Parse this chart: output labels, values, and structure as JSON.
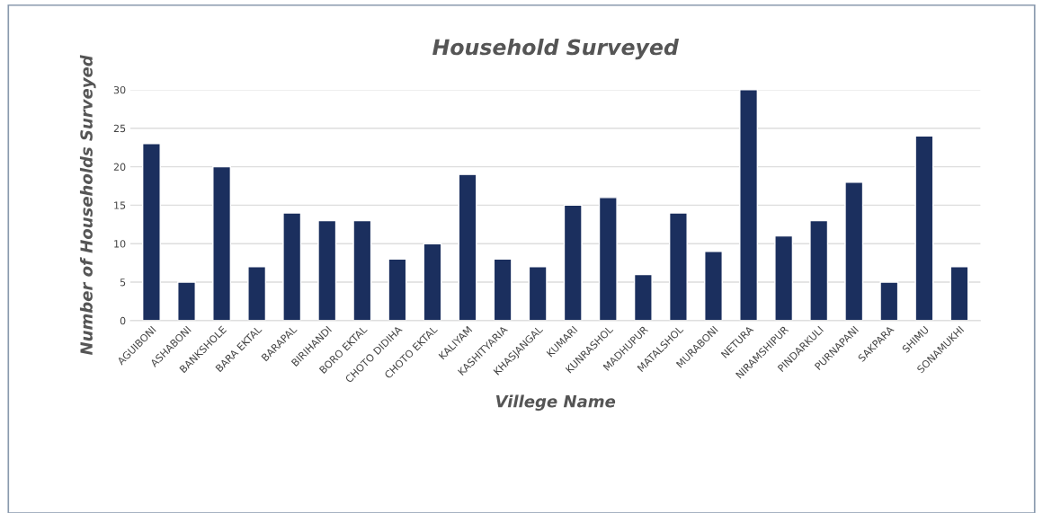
{
  "chart_data": {
    "type": "bar",
    "title": "Household Surveyed",
    "xlabel": "Villege Name",
    "ylabel": "Number of Households Surveyed",
    "categories": [
      "AGUIBONI",
      "ASHABONI",
      "BANKSHOLE",
      "BARA EKTAL",
      "BARAPAL",
      "BIRIHANDI",
      "BORO EKTAL",
      "CHOTO DIDIHA",
      "CHOTO EKTAL",
      "KALIYAM",
      "KASHITYARIA",
      "KHASJANGAL",
      "KUMARI",
      "KUNRASHOL",
      "MADHUPUR",
      "MATALSHOL",
      "MURABONI",
      "NETURA",
      "NIRAMSHIPUR",
      "PINDARKULI",
      "PURNAPANI",
      "SAKPARA",
      "SHIMU",
      "SONAMUKHI"
    ],
    "values": [
      23,
      5,
      20,
      7,
      14,
      13,
      13,
      8,
      10,
      19,
      8,
      7,
      15,
      16,
      6,
      14,
      9,
      30,
      11,
      13,
      18,
      5,
      24,
      7
    ],
    "color": "#1b2f5e",
    "ylim": [
      0,
      30
    ],
    "yticks": [
      0,
      5,
      10,
      15,
      20,
      25,
      30
    ],
    "grid": "y"
  }
}
